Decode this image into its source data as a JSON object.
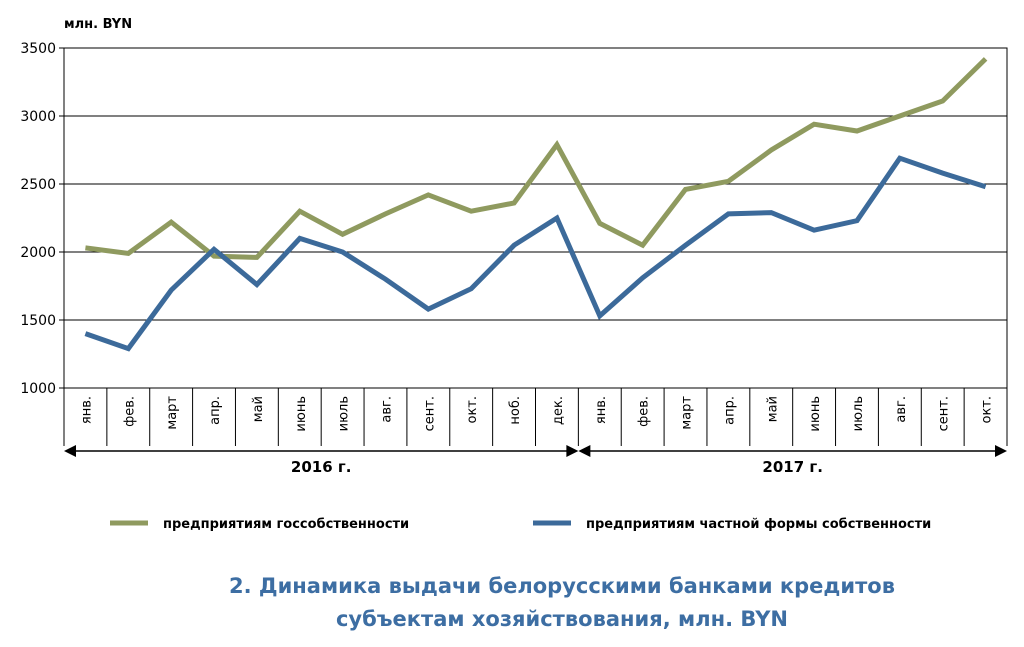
{
  "chart_data": {
    "type": "line",
    "unit_label": "млн. BYN",
    "ylim": [
      1000,
      3500
    ],
    "yticks": [
      1000,
      1500,
      2000,
      2500,
      3000,
      3500
    ],
    "grid": true,
    "x": [
      "янв.",
      "фев.",
      "март",
      "апр.",
      "май",
      "июнь",
      "июль",
      "авг.",
      "сент.",
      "окт.",
      "ноб.",
      "дек.",
      "янв.",
      "фев.",
      "март",
      "апр.",
      "май",
      "июнь",
      "июль",
      "авг.",
      "сент.",
      "окт."
    ],
    "year_groups": [
      {
        "label": "2016 г.",
        "start": 0,
        "end": 11
      },
      {
        "label": "2017 г.",
        "start": 12,
        "end": 21
      }
    ],
    "series": [
      {
        "name": "предприятиям госсобственности",
        "color": "#8f9a5f",
        "values": [
          2030,
          1990,
          2220,
          1970,
          1960,
          2300,
          2130,
          2280,
          2420,
          2300,
          2360,
          2790,
          2210,
          2050,
          2460,
          2520,
          2750,
          2940,
          2890,
          3000,
          3110,
          3420
        ]
      },
      {
        "name": "предприятиям частной формы собственности",
        "color": "#3c6a9a",
        "values": [
          1400,
          1290,
          1720,
          2020,
          1760,
          2100,
          2000,
          1800,
          1580,
          1730,
          2050,
          2250,
          1530,
          1810,
          2050,
          2280,
          2290,
          2160,
          2230,
          2690,
          2580,
          2480
        ]
      }
    ],
    "legend_position": "bottom"
  },
  "caption": {
    "line1": "2. Динамика выдачи белорусскими банками кредитов",
    "line2": "субъектам хозяйствования, млн. BYN"
  }
}
